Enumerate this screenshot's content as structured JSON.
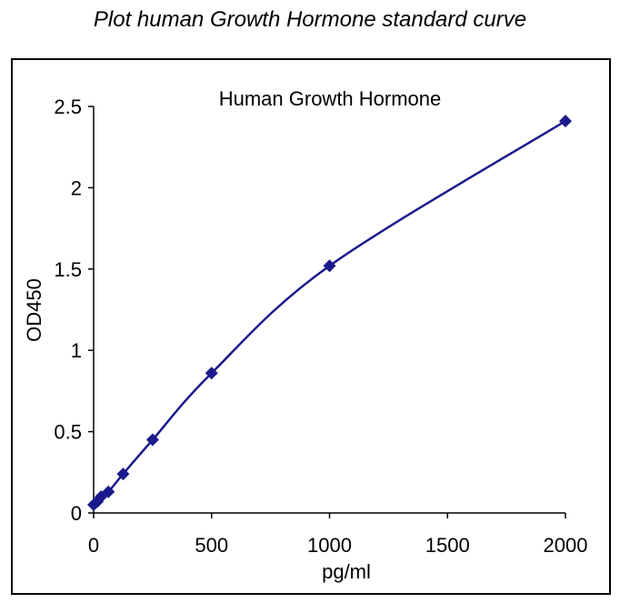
{
  "page_title": "Plot human Growth Hormone standard curve",
  "chart_data": {
    "type": "scatter",
    "title": "Human Growth Hormone",
    "xlabel": "pg/ml",
    "ylabel": "OD450",
    "xlim": [
      0,
      2000
    ],
    "ylim": [
      0,
      2.5
    ],
    "x_ticks": [
      0,
      500,
      1000,
      1500,
      2000
    ],
    "x_tick_labels": [
      "0",
      "500",
      "1000",
      "1500",
      "2000"
    ],
    "y_ticks": [
      0,
      0.5,
      1,
      1.5,
      2,
      2.5
    ],
    "y_tick_labels": [
      "0",
      "0.5",
      "1",
      "1.5",
      "2",
      "2.5"
    ],
    "grid": false,
    "legend": "none",
    "series": [
      {
        "color": "#1a1a8c",
        "marker": "diamond",
        "line": "smooth",
        "points": [
          {
            "x": 0,
            "y": 0.05
          },
          {
            "x": 15.6,
            "y": 0.07
          },
          {
            "x": 31.2,
            "y": 0.1
          },
          {
            "x": 62.5,
            "y": 0.13
          },
          {
            "x": 125,
            "y": 0.24
          },
          {
            "x": 250,
            "y": 0.45
          },
          {
            "x": 500,
            "y": 0.86
          },
          {
            "x": 1000,
            "y": 1.52
          },
          {
            "x": 2000,
            "y": 2.41
          }
        ]
      }
    ]
  }
}
